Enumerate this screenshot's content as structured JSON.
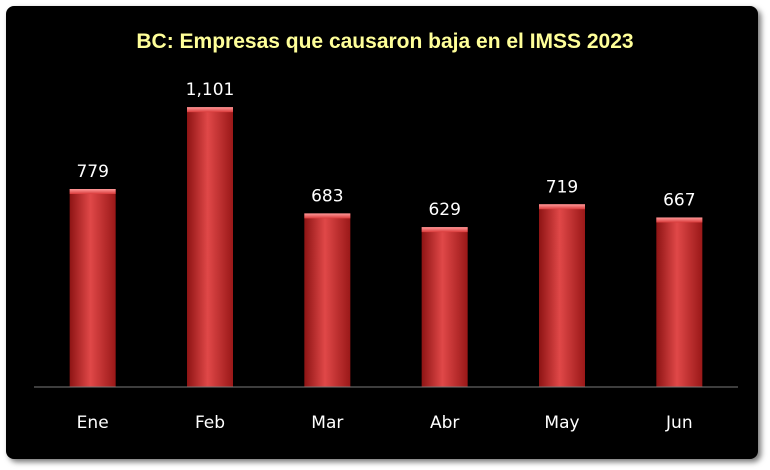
{
  "chart_data": {
    "type": "bar",
    "title": "BC: Empresas que causaron baja  en el IMSS 2023",
    "categories": [
      "Ene",
      "Feb",
      "Mar",
      "Abr",
      "May",
      "Jun"
    ],
    "values": [
      779,
      1101,
      683,
      629,
      719,
      667
    ],
    "value_labels": [
      "779",
      "1,101",
      "683",
      "629",
      "719",
      "667"
    ],
    "xlabel": "",
    "ylabel": "",
    "ylim": [
      0,
      1200
    ],
    "grid": false,
    "legend": "none",
    "colors": {
      "bar": "#d93a3a",
      "background": "#000000",
      "title": "#ffff99",
      "text": "#ffffff"
    }
  }
}
